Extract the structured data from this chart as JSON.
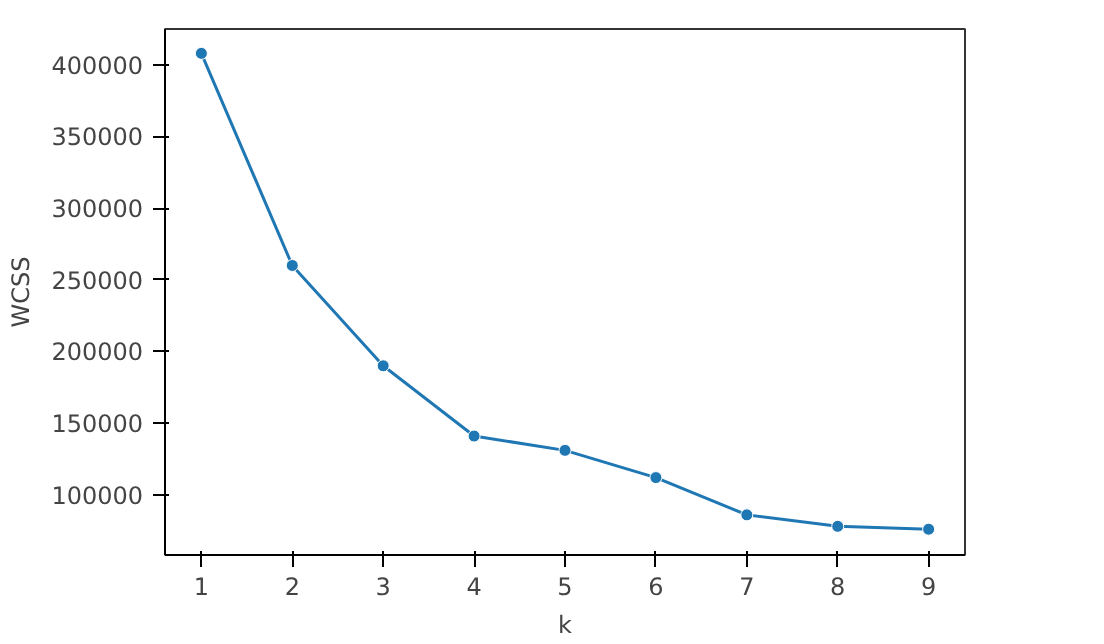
{
  "chart_data": {
    "type": "line",
    "xlabel": "k",
    "ylabel": "WCSS",
    "x": [
      1,
      2,
      3,
      4,
      5,
      6,
      7,
      8,
      9
    ],
    "series": [
      {
        "color": "#1f77b4",
        "values": [
          408000,
          260000,
          190000,
          141000,
          131000,
          112000,
          86000,
          78000,
          76000
        ]
      }
    ],
    "xlim": [
      0.6,
      9.4
    ],
    "ylim": [
      58000,
      425000
    ],
    "xticks": [
      1,
      2,
      3,
      4,
      5,
      6,
      7,
      8,
      9
    ],
    "yticks": [
      100000,
      150000,
      200000,
      250000,
      300000,
      350000,
      400000
    ],
    "marker": "circle",
    "line_style": "solid",
    "grid": false
  }
}
